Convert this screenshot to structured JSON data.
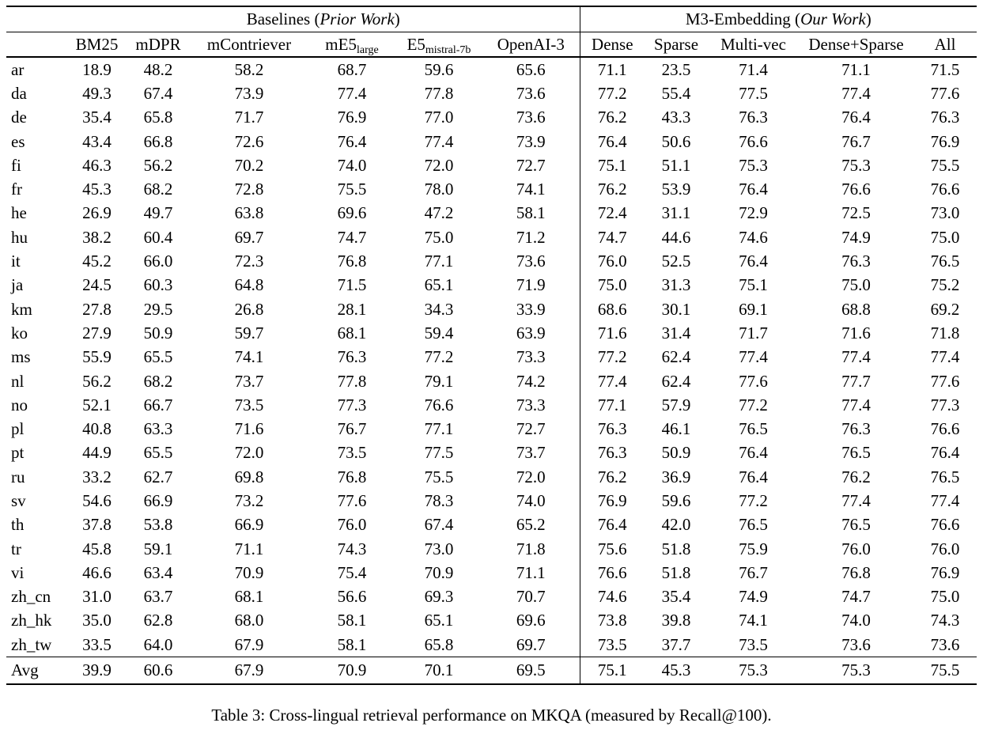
{
  "caption": "Table 3: Cross-lingual retrieval performance on MKQA (measured by Recall@100).",
  "colors": {
    "text": "#000000",
    "background": "#ffffff",
    "rule": "#000000"
  },
  "table": {
    "groups": [
      {
        "prefix": "Baselines (",
        "italic": "Prior Work",
        "suffix": ")"
      },
      {
        "prefix": "M3-Embedding (",
        "italic": "Our Work",
        "suffix": ")"
      }
    ],
    "columns": [
      {
        "label": "BM25",
        "sub": ""
      },
      {
        "label": "mDPR",
        "sub": ""
      },
      {
        "label": "mContriever",
        "sub": ""
      },
      {
        "label": "mE5",
        "sub": "large"
      },
      {
        "label": "E5",
        "sub": "mistral-7b"
      },
      {
        "label": "OpenAI-3",
        "sub": ""
      },
      {
        "label": "Dense",
        "sub": ""
      },
      {
        "label": "Sparse",
        "sub": ""
      },
      {
        "label": "Multi-vec",
        "sub": ""
      },
      {
        "label": "Dense+Sparse",
        "sub": ""
      },
      {
        "label": "All",
        "sub": ""
      }
    ],
    "rows": [
      {
        "lang": "ar",
        "values": [
          "18.9",
          "48.2",
          "58.2",
          "68.7",
          "59.6",
          "65.6",
          "71.1",
          "23.5",
          "71.4",
          "71.1",
          "71.5"
        ],
        "bold": [
          10
        ]
      },
      {
        "lang": "da",
        "values": [
          "49.3",
          "67.4",
          "73.9",
          "77.4",
          "77.8",
          "73.6",
          "77.2",
          "55.4",
          "77.5",
          "77.4",
          "77.6"
        ],
        "bold": [
          4
        ]
      },
      {
        "lang": "de",
        "values": [
          "35.4",
          "65.8",
          "71.7",
          "76.9",
          "77.0",
          "73.6",
          "76.2",
          "43.3",
          "76.3",
          "76.4",
          "76.3"
        ],
        "bold": [
          4
        ]
      },
      {
        "lang": "es",
        "values": [
          "43.4",
          "66.8",
          "72.6",
          "76.4",
          "77.4",
          "73.9",
          "76.4",
          "50.6",
          "76.6",
          "76.7",
          "76.9"
        ],
        "bold": [
          4
        ]
      },
      {
        "lang": "fi",
        "values": [
          "46.3",
          "56.2",
          "70.2",
          "74.0",
          "72.0",
          "72.7",
          "75.1",
          "51.1",
          "75.3",
          "75.3",
          "75.5"
        ],
        "bold": [
          10
        ]
      },
      {
        "lang": "fr",
        "values": [
          "45.3",
          "68.2",
          "72.8",
          "75.5",
          "78.0",
          "74.1",
          "76.2",
          "53.9",
          "76.4",
          "76.6",
          "76.6"
        ],
        "bold": [
          4
        ]
      },
      {
        "lang": "he",
        "values": [
          "26.9",
          "49.7",
          "63.8",
          "69.6",
          "47.2",
          "58.1",
          "72.4",
          "31.1",
          "72.9",
          "72.5",
          "73.0"
        ],
        "bold": [
          10
        ]
      },
      {
        "lang": "hu",
        "values": [
          "38.2",
          "60.4",
          "69.7",
          "74.7",
          "75.0",
          "71.2",
          "74.7",
          "44.6",
          "74.6",
          "74.9",
          "75.0"
        ],
        "bold": [
          4,
          10
        ]
      },
      {
        "lang": "it",
        "values": [
          "45.2",
          "66.0",
          "72.3",
          "76.8",
          "77.1",
          "73.6",
          "76.0",
          "52.5",
          "76.4",
          "76.3",
          "76.5"
        ],
        "bold": [
          4
        ]
      },
      {
        "lang": "ja",
        "values": [
          "24.5",
          "60.3",
          "64.8",
          "71.5",
          "65.1",
          "71.9",
          "75.0",
          "31.3",
          "75.1",
          "75.0",
          "75.2"
        ],
        "bold": [
          10
        ]
      },
      {
        "lang": "km",
        "values": [
          "27.8",
          "29.5",
          "26.8",
          "28.1",
          "34.3",
          "33.9",
          "68.6",
          "30.1",
          "69.1",
          "68.8",
          "69.2"
        ],
        "bold": [
          10
        ]
      },
      {
        "lang": "ko",
        "values": [
          "27.9",
          "50.9",
          "59.7",
          "68.1",
          "59.4",
          "63.9",
          "71.6",
          "31.4",
          "71.7",
          "71.6",
          "71.8"
        ],
        "bold": [
          10
        ]
      },
      {
        "lang": "ms",
        "values": [
          "55.9",
          "65.5",
          "74.1",
          "76.3",
          "77.2",
          "73.3",
          "77.2",
          "62.4",
          "77.4",
          "77.4",
          "77.4"
        ],
        "bold": [
          8,
          9,
          10
        ]
      },
      {
        "lang": "nl",
        "values": [
          "56.2",
          "68.2",
          "73.7",
          "77.8",
          "79.1",
          "74.2",
          "77.4",
          "62.4",
          "77.6",
          "77.7",
          "77.6"
        ],
        "bold": [
          4
        ]
      },
      {
        "lang": "no",
        "values": [
          "52.1",
          "66.7",
          "73.5",
          "77.3",
          "76.6",
          "73.3",
          "77.1",
          "57.9",
          "77.2",
          "77.4",
          "77.3"
        ],
        "bold": [
          9
        ]
      },
      {
        "lang": "pl",
        "values": [
          "40.8",
          "63.3",
          "71.6",
          "76.7",
          "77.1",
          "72.7",
          "76.3",
          "46.1",
          "76.5",
          "76.3",
          "76.6"
        ],
        "bold": [
          4
        ]
      },
      {
        "lang": "pt",
        "values": [
          "44.9",
          "65.5",
          "72.0",
          "73.5",
          "77.5",
          "73.7",
          "76.3",
          "50.9",
          "76.4",
          "76.5",
          "76.4"
        ],
        "bold": [
          4
        ]
      },
      {
        "lang": "ru",
        "values": [
          "33.2",
          "62.7",
          "69.8",
          "76.8",
          "75.5",
          "72.0",
          "76.2",
          "36.9",
          "76.4",
          "76.2",
          "76.5"
        ],
        "bold": [
          3
        ]
      },
      {
        "lang": "sv",
        "values": [
          "54.6",
          "66.9",
          "73.2",
          "77.6",
          "78.3",
          "74.0",
          "76.9",
          "59.6",
          "77.2",
          "77.4",
          "77.4"
        ],
        "bold": [
          4
        ]
      },
      {
        "lang": "th",
        "values": [
          "37.8",
          "53.8",
          "66.9",
          "76.0",
          "67.4",
          "65.2",
          "76.4",
          "42.0",
          "76.5",
          "76.5",
          "76.6"
        ],
        "bold": [
          10
        ]
      },
      {
        "lang": "tr",
        "values": [
          "45.8",
          "59.1",
          "71.1",
          "74.3",
          "73.0",
          "71.8",
          "75.6",
          "51.8",
          "75.9",
          "76.0",
          "76.0"
        ],
        "bold": [
          9,
          10
        ]
      },
      {
        "lang": "vi",
        "values": [
          "46.6",
          "63.4",
          "70.9",
          "75.4",
          "70.9",
          "71.1",
          "76.6",
          "51.8",
          "76.7",
          "76.8",
          "76.9"
        ],
        "bold": [
          10
        ]
      },
      {
        "lang": "zh_cn",
        "values": [
          "31.0",
          "63.7",
          "68.1",
          "56.6",
          "69.3",
          "70.7",
          "74.6",
          "35.4",
          "74.9",
          "74.7",
          "75.0"
        ],
        "bold": [
          10
        ]
      },
      {
        "lang": "zh_hk",
        "values": [
          "35.0",
          "62.8",
          "68.0",
          "58.1",
          "65.1",
          "69.6",
          "73.8",
          "39.8",
          "74.1",
          "74.0",
          "74.3"
        ],
        "bold": [
          10
        ]
      },
      {
        "lang": "zh_tw",
        "values": [
          "33.5",
          "64.0",
          "67.9",
          "58.1",
          "65.8",
          "69.7",
          "73.5",
          "37.7",
          "73.5",
          "73.6",
          "73.6"
        ],
        "bold": [
          9,
          10
        ]
      },
      {
        "lang": "Avg",
        "values": [
          "39.9",
          "60.6",
          "67.9",
          "70.9",
          "70.1",
          "69.5",
          "75.1",
          "45.3",
          "75.3",
          "75.3",
          "75.5"
        ],
        "bold": [
          10
        ]
      }
    ]
  }
}
